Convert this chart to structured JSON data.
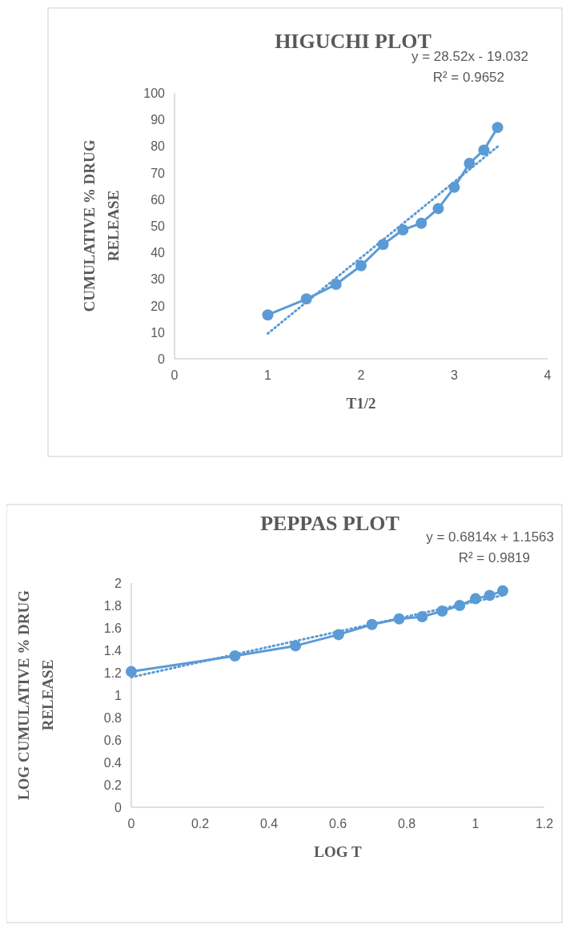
{
  "chart_data": [
    {
      "type": "line",
      "title": "HIGUCHI PLOT",
      "xlabel": "T1/2",
      "ylabel": "CUMULATIVE % DRUG RELEASE",
      "annotations": [
        "y = 28.52x - 19.032",
        "R² = 0.9652"
      ],
      "xlim": [
        0,
        4
      ],
      "xticks": [
        0,
        1,
        2,
        3,
        4
      ],
      "ylim": [
        0,
        100
      ],
      "yticks": [
        0,
        10,
        20,
        30,
        40,
        50,
        60,
        70,
        80,
        90,
        100
      ],
      "series": [
        {
          "color": "#5b9bd5",
          "marker": "circle",
          "line_style": "solid",
          "x": [
            1,
            1.414,
            1.732,
            2,
            2.236,
            2.449,
            2.646,
            2.828,
            3,
            3.162,
            3.317,
            3.464
          ],
          "values": [
            16.5,
            22.5,
            28,
            35,
            43,
            48.5,
            51,
            56.5,
            64.5,
            73.5,
            78.5,
            87
          ]
        },
        {
          "color": "#5b9bd5",
          "marker": "none",
          "line_style": "dotted",
          "x": [
            1,
            3.464
          ],
          "values": [
            9.5,
            79.8
          ]
        }
      ]
    },
    {
      "type": "line",
      "title": "PEPPAS PLOT",
      "xlabel": "LOG T",
      "ylabel": "LOG CUMULATIVE % DRUG RELEASE",
      "annotations": [
        "y = 0.6814x + 1.1563",
        "R² = 0.9819"
      ],
      "xlim": [
        0,
        1.2
      ],
      "xticks": [
        0,
        0.2,
        0.4,
        0.6,
        0.8,
        1,
        1.2
      ],
      "ylim": [
        0,
        2
      ],
      "yticks": [
        0,
        0.2,
        0.4,
        0.6,
        0.8,
        1,
        1.2,
        1.4,
        1.6,
        1.8,
        2
      ],
      "series": [
        {
          "color": "#5b9bd5",
          "marker": "circle",
          "line_style": "solid",
          "x": [
            0,
            0.301,
            0.477,
            0.602,
            0.699,
            0.778,
            0.845,
            0.903,
            0.954,
            1,
            1.041,
            1.079
          ],
          "values": [
            1.21,
            1.35,
            1.44,
            1.54,
            1.63,
            1.68,
            1.7,
            1.75,
            1.8,
            1.86,
            1.89,
            1.93
          ]
        },
        {
          "color": "#5b9bd5",
          "marker": "none",
          "line_style": "dotted",
          "x": [
            0,
            1.079
          ],
          "values": [
            1.16,
            1.89
          ]
        }
      ]
    }
  ]
}
